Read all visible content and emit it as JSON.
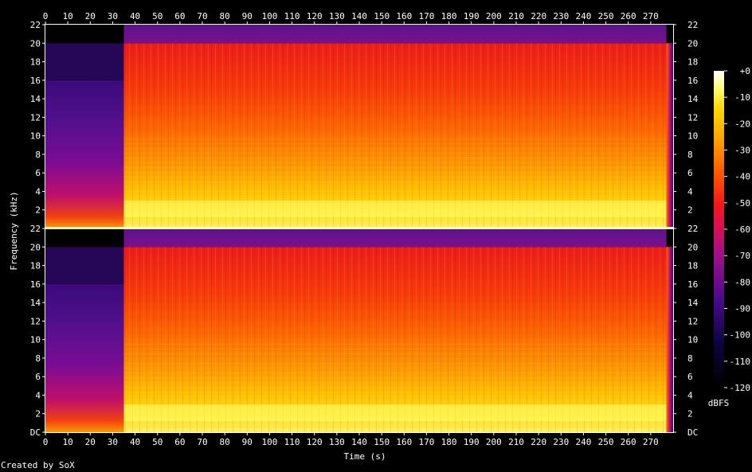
{
  "chart_data": {
    "type": "heatmap",
    "title": "",
    "xlabel": "Time (s)",
    "ylabel": "Frequency (kHz)",
    "xlim": [
      0,
      280
    ],
    "ylim": [
      0,
      22
    ],
    "x_ticks": [
      "0",
      "10",
      "20",
      "30",
      "40",
      "50",
      "60",
      "70",
      "80",
      "90",
      "100",
      "110",
      "120",
      "130",
      "140",
      "150",
      "160",
      "170",
      "180",
      "190",
      "200",
      "210",
      "220",
      "230",
      "240",
      "250",
      "260",
      "270"
    ],
    "y_ticks": [
      "DC",
      "2",
      "4",
      "6",
      "8",
      "10",
      "12",
      "14",
      "16",
      "18",
      "20",
      "22"
    ],
    "channels": 2,
    "intro_end_s": 35,
    "intro_cutoff_khz": 16,
    "music_cutoff_khz": 20,
    "track_end_s": 277,
    "colorbar": {
      "label": "dBFS",
      "ticks": [
        "+0",
        "-10",
        "-20",
        "-30",
        "-40",
        "-50",
        "-60",
        "-70",
        "-80",
        "-90",
        "-100",
        "-110",
        "-120"
      ],
      "range": [
        -120,
        0
      ]
    },
    "credit": "Created by SoX"
  }
}
